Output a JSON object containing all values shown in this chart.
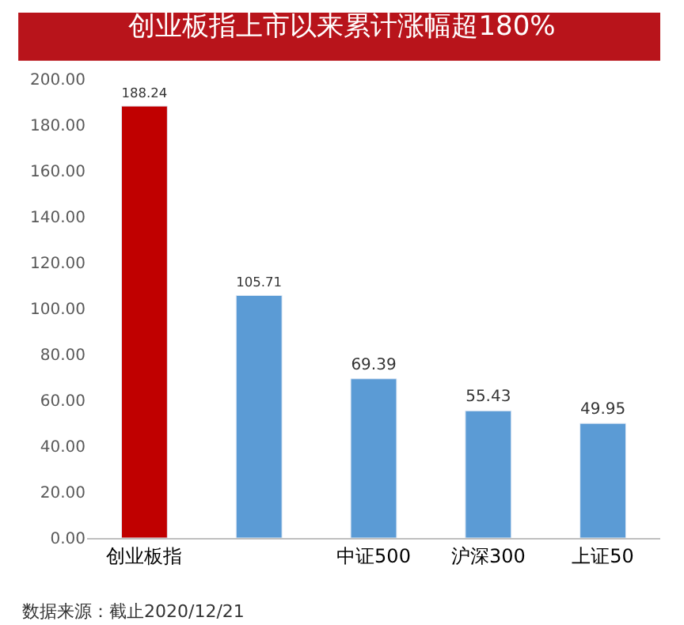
{
  "chart_data": {
    "type": "bar",
    "title": "创业板指上市以来累计涨幅超180%",
    "categories": [
      "创业板指",
      null,
      "中证500",
      "沪深300",
      "上证50"
    ],
    "values": [
      188.24,
      105.71,
      69.39,
      55.43,
      49.95
    ],
    "colors": [
      "#c00000",
      "#5b9bd5",
      "#5b9bd5",
      "#5b9bd5",
      "#5b9bd5"
    ],
    "ylim": [
      0,
      200
    ],
    "yticks": [
      {
        "value": 0,
        "label": "0.00"
      },
      {
        "value": 20,
        "label": "20.00"
      },
      {
        "value": 40,
        "label": "40.00"
      },
      {
        "value": 60,
        "label": "60.00"
      },
      {
        "value": 80,
        "label": "80.00"
      },
      {
        "value": 100,
        "label": "100.00"
      },
      {
        "value": 120,
        "label": "120.00"
      },
      {
        "value": 140,
        "label": "140.00"
      },
      {
        "value": 160,
        "label": "160.00"
      },
      {
        "value": 180,
        "label": "180.00"
      },
      {
        "value": 200,
        "label": "200.00"
      }
    ],
    "data_labels": true,
    "grid": false,
    "annotations": [
      "数据来源：截止2020/12/21"
    ]
  }
}
